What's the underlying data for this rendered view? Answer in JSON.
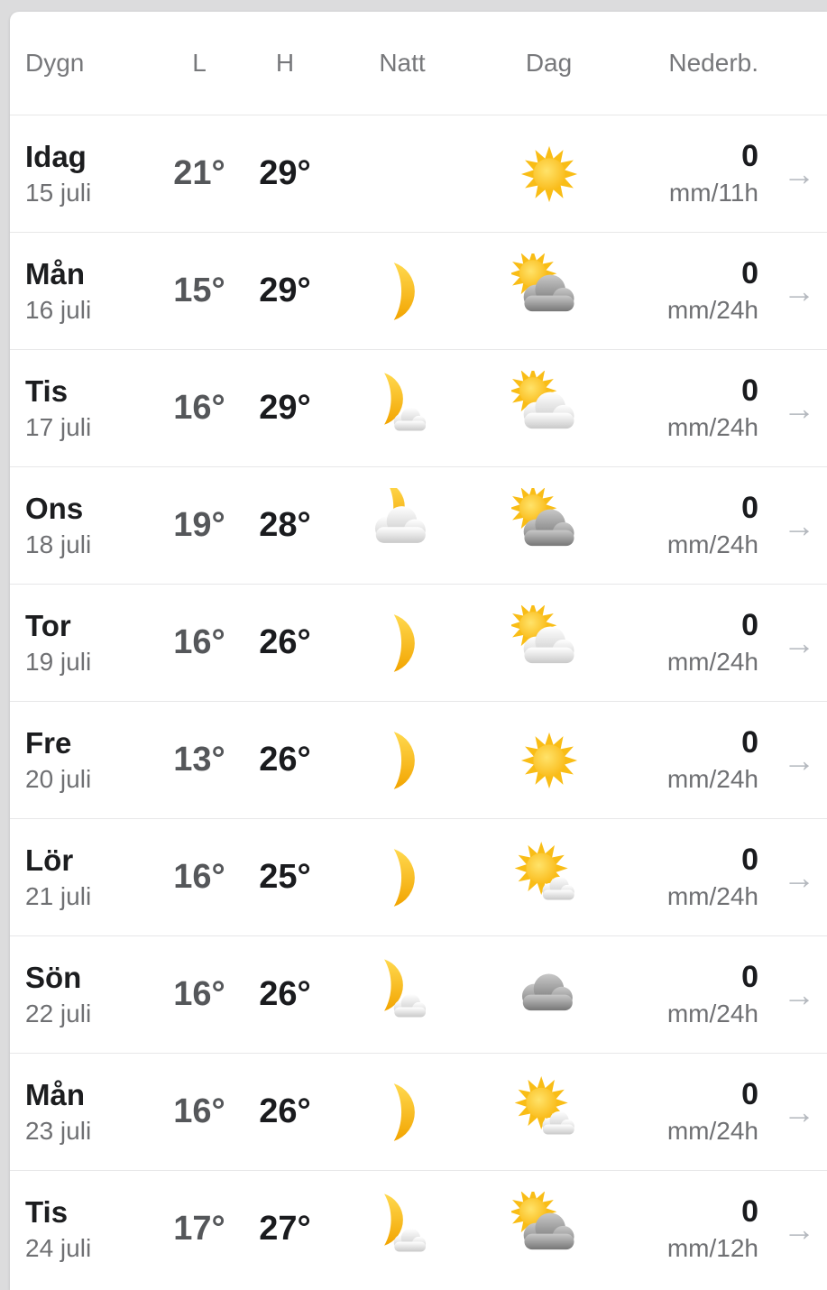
{
  "page": {
    "background_color": "#dcdcdd",
    "card_color": "#ffffff"
  },
  "table": {
    "headers": {
      "day": "Dygn",
      "low": "L",
      "high": "H",
      "night": "Natt",
      "day_weather": "Dag",
      "precip": "Nederb."
    },
    "row_arrow": "→",
    "rows": [
      {
        "day": "Idag",
        "date": "15 juli",
        "low": "21°",
        "high": "29°",
        "night_icon": null,
        "weather_icon": "sun",
        "precip_value": "0",
        "precip_unit": "mm/11h"
      },
      {
        "day": "Mån",
        "date": "16 juli",
        "low": "15°",
        "high": "29°",
        "night_icon": "moon",
        "weather_icon": "sun-dark-cloud",
        "precip_value": "0",
        "precip_unit": "mm/24h"
      },
      {
        "day": "Tis",
        "date": "17 juli",
        "low": "16°",
        "high": "29°",
        "night_icon": "moon-cloud",
        "weather_icon": "sun-cloud",
        "precip_value": "0",
        "precip_unit": "mm/24h"
      },
      {
        "day": "Ons",
        "date": "18 juli",
        "low": "19°",
        "high": "28°",
        "night_icon": "cloud-moon",
        "weather_icon": "sun-dark-cloud",
        "precip_value": "0",
        "precip_unit": "mm/24h"
      },
      {
        "day": "Tor",
        "date": "19 juli",
        "low": "16°",
        "high": "26°",
        "night_icon": "moon",
        "weather_icon": "sun-cloud",
        "precip_value": "0",
        "precip_unit": "mm/24h"
      },
      {
        "day": "Fre",
        "date": "20 juli",
        "low": "13°",
        "high": "26°",
        "night_icon": "moon",
        "weather_icon": "sun",
        "precip_value": "0",
        "precip_unit": "mm/24h"
      },
      {
        "day": "Lör",
        "date": "21 juli",
        "low": "16°",
        "high": "25°",
        "night_icon": "moon",
        "weather_icon": "sun-small-cloud",
        "precip_value": "0",
        "precip_unit": "mm/24h"
      },
      {
        "day": "Sön",
        "date": "22 juli",
        "low": "16°",
        "high": "26°",
        "night_icon": "moon-cloud",
        "weather_icon": "cloud",
        "precip_value": "0",
        "precip_unit": "mm/24h"
      },
      {
        "day": "Mån",
        "date": "23 juli",
        "low": "16°",
        "high": "26°",
        "night_icon": "moon",
        "weather_icon": "sun-small-cloud",
        "precip_value": "0",
        "precip_unit": "mm/24h"
      },
      {
        "day": "Tis",
        "date": "24 juli",
        "low": "17°",
        "high": "27°",
        "night_icon": "moon-cloud",
        "weather_icon": "sun-dark-cloud",
        "precip_value": "0",
        "precip_unit": "mm/12h"
      }
    ]
  },
  "colors": {
    "day_name": "#1c1d1f",
    "date": "#6f7073",
    "temp_low": "#55575a",
    "temp_high": "#1a1b1e",
    "header_text": "#77787b",
    "divider": "#e7e7e8",
    "arrow": "#b4b8be",
    "sun_yellow": "#f9bd16",
    "moon_gold": "#f5a700",
    "cloud_gray": "#7a7a7a"
  }
}
